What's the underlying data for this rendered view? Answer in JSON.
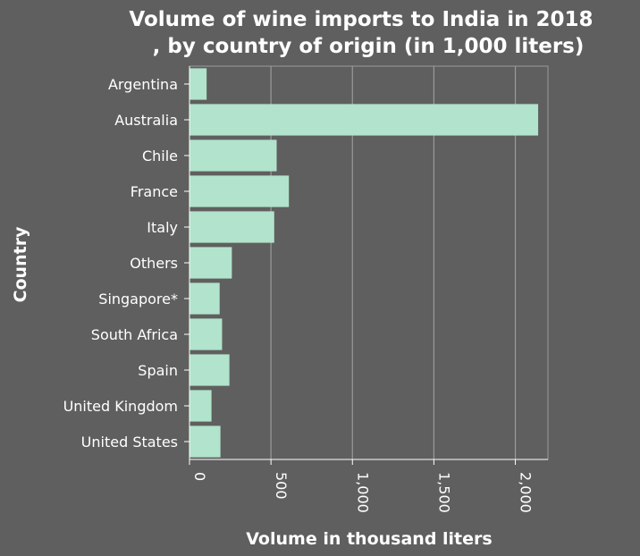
{
  "chart_data": {
    "type": "bar",
    "orientation": "horizontal",
    "title_line1": "Volume of wine imports to India in 2018",
    "title_line2": ", by country of origin (in 1,000 liters)",
    "xlabel": "Volume in thousand liters",
    "ylabel": "Country",
    "categories": [
      "Argentina",
      "Australia",
      "Chile",
      "France",
      "Italy",
      "Others",
      "Singapore*",
      "South Africa",
      "Spain",
      "United Kingdom",
      "United States"
    ],
    "values": [
      105,
      2140,
      535,
      610,
      520,
      260,
      185,
      200,
      245,
      135,
      190
    ],
    "xlim": [
      0,
      2200
    ],
    "xticks": [
      0,
      500,
      1000,
      1500,
      2000
    ],
    "xtick_labels": [
      "0",
      "500",
      "1,000",
      "1,500",
      "2,000"
    ],
    "grid": "vertical",
    "colors": {
      "background": "#5f5f5f",
      "bar": "#b2e3cc",
      "grid": "#9a9a9a",
      "text": "#ffffff"
    }
  }
}
